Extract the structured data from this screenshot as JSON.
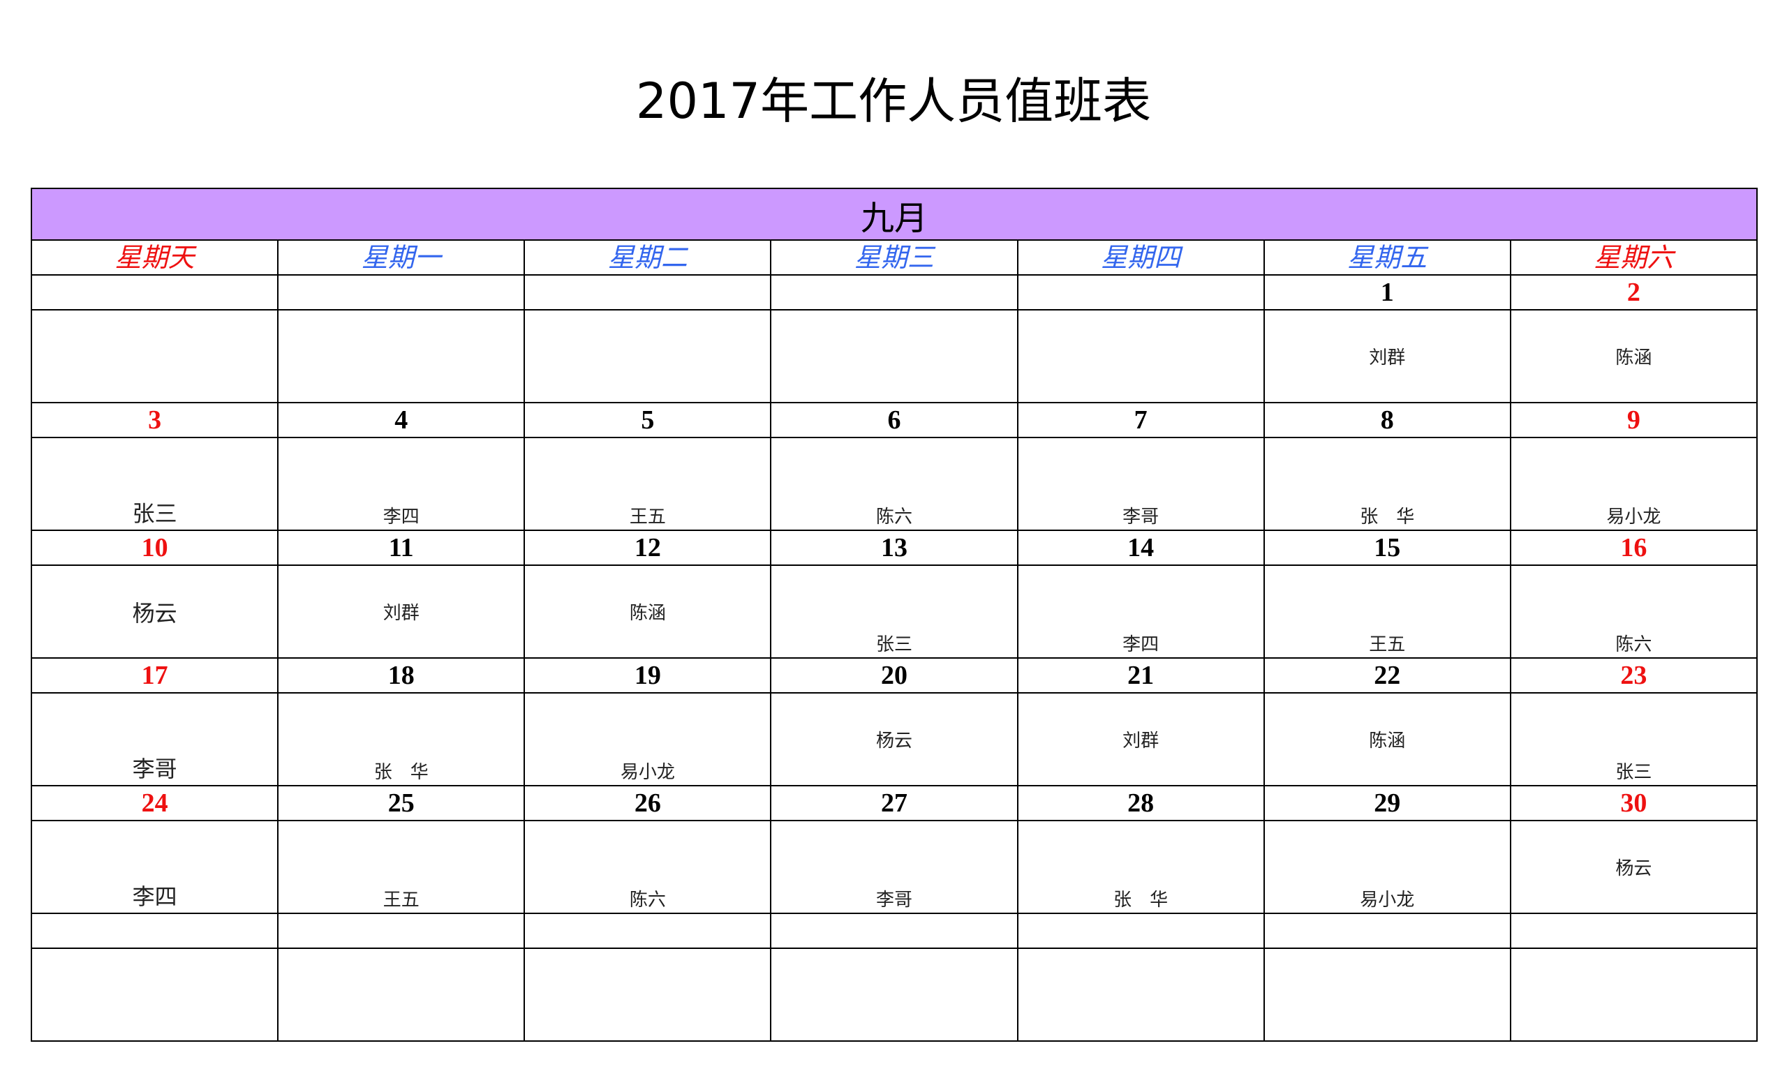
{
  "title": "2017年工作人员值班表",
  "month": "九月",
  "colors": {
    "header_bg": "#cc99ff",
    "weekend": "#ee1111",
    "weekday_header": "#3366ee"
  },
  "weekdays": [
    "星期天",
    "星期一",
    "星期二",
    "星期三",
    "星期四",
    "星期五",
    "星期六"
  ],
  "weeks": [
    {
      "dates": [
        "",
        "",
        "",
        "",
        "",
        "1",
        "2"
      ],
      "names": [
        "",
        "",
        "",
        "",
        "",
        "刘群",
        "陈涵"
      ]
    },
    {
      "dates": [
        "3",
        "4",
        "5",
        "6",
        "7",
        "8",
        "9"
      ],
      "names": [
        "张三",
        "李四",
        "王五",
        "陈六",
        "李哥",
        "张　华",
        "易小龙"
      ]
    },
    {
      "dates": [
        "10",
        "11",
        "12",
        "13",
        "14",
        "15",
        "16"
      ],
      "names": [
        "杨云",
        "刘群",
        "陈涵",
        "张三",
        "李四",
        "王五",
        "陈六"
      ]
    },
    {
      "dates": [
        "17",
        "18",
        "19",
        "20",
        "21",
        "22",
        "23"
      ],
      "names": [
        "李哥",
        "张　华",
        "易小龙",
        "杨云",
        "刘群",
        "陈涵",
        "张三"
      ]
    },
    {
      "dates": [
        "24",
        "25",
        "26",
        "27",
        "28",
        "29",
        "30"
      ],
      "names": [
        "李四",
        "王五",
        "陈六",
        "李哥",
        "张　华",
        "易小龙",
        "杨云"
      ]
    },
    {
      "dates": [
        "",
        "",
        "",
        "",
        "",
        "",
        ""
      ],
      "names": [
        "",
        "",
        "",
        "",
        "",
        "",
        ""
      ]
    }
  ]
}
